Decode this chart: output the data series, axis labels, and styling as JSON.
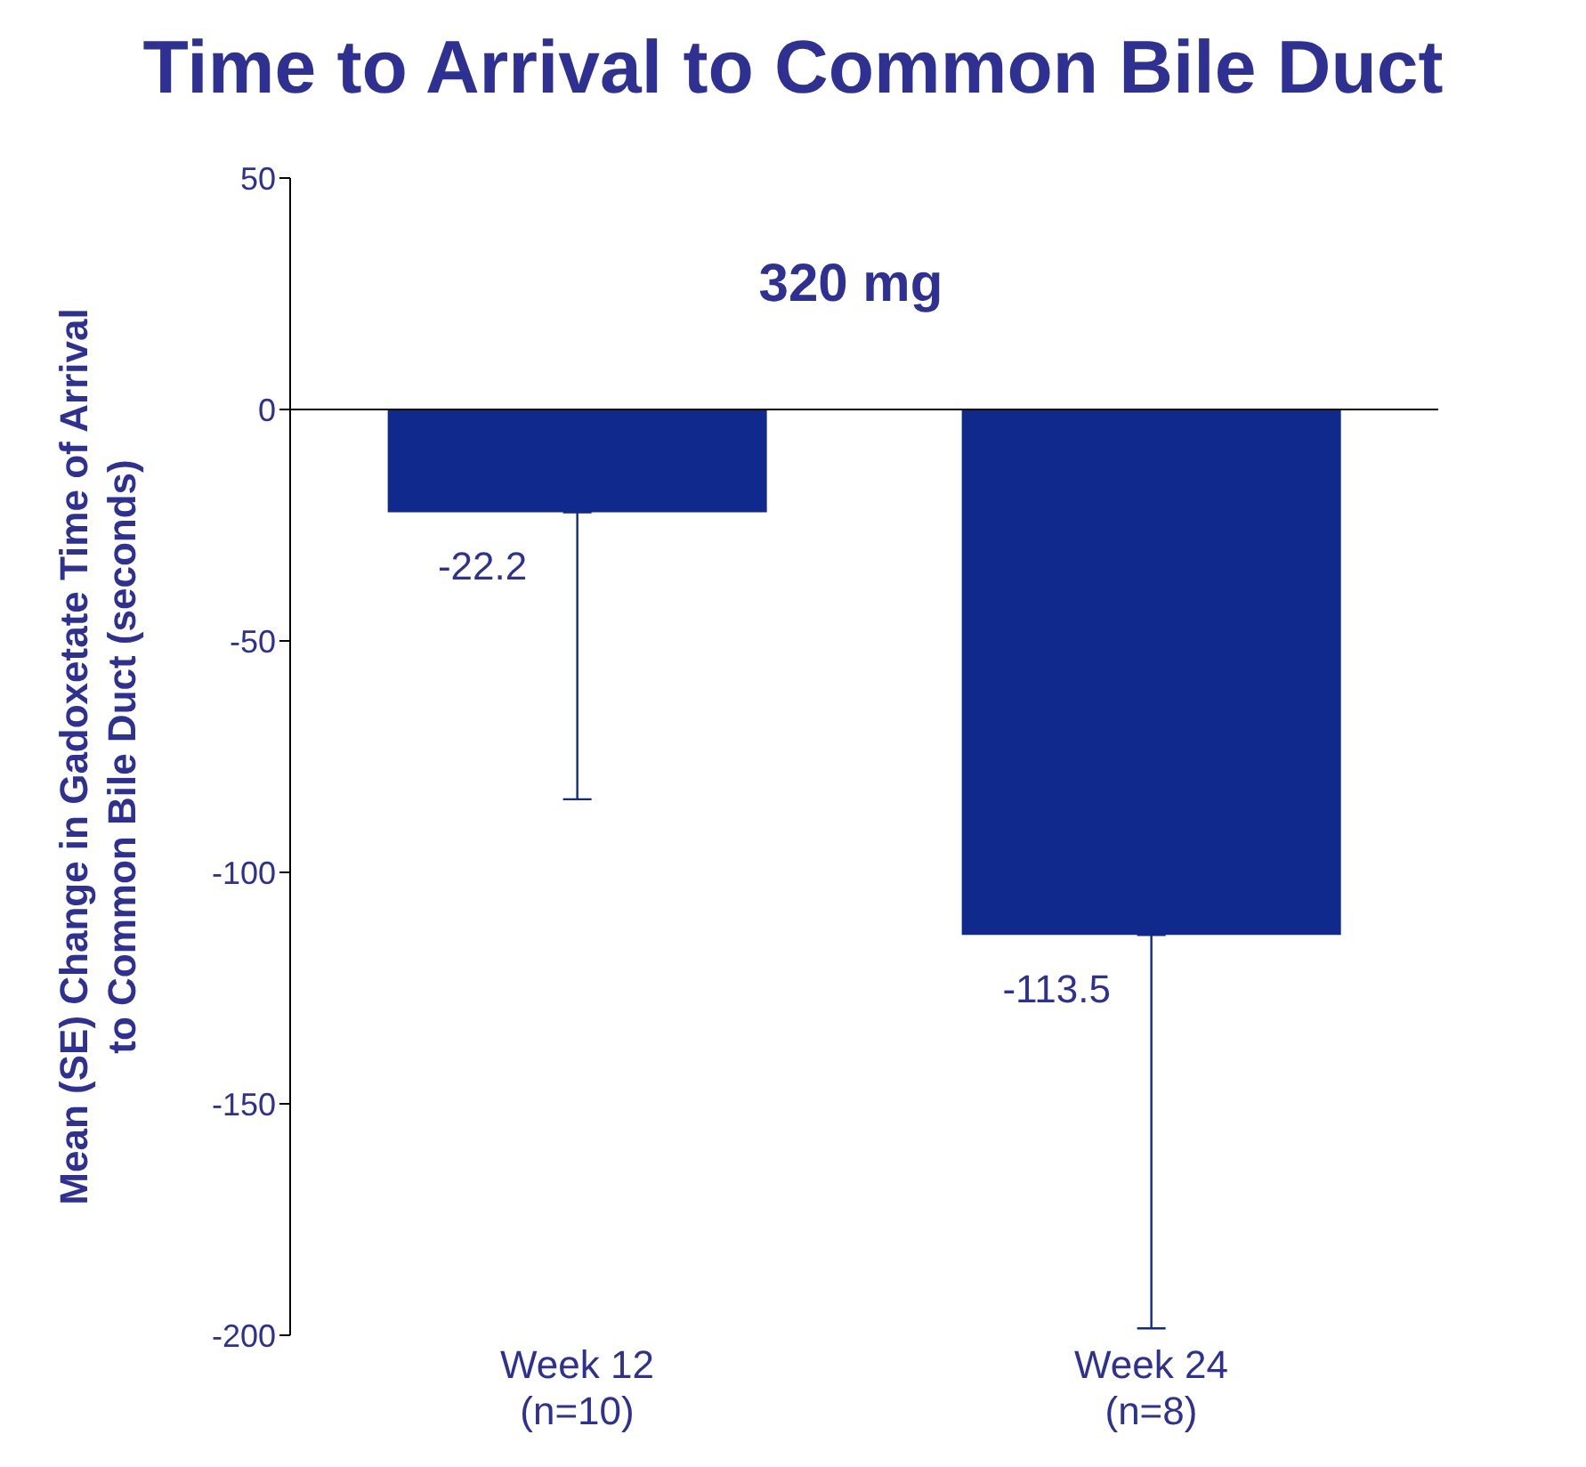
{
  "chart_data": {
    "type": "bar",
    "title": "Time to Arrival to Common Bile Duct",
    "ylabel": "Mean (SE) Change in Gadoxetate Time of Arrival\nto Common Bile Duct (seconds)",
    "annotations": [
      "320 mg"
    ],
    "categories": [
      "Week 12\n(n=10)",
      "Week 24\n(n=8)"
    ],
    "values": [
      -22.2,
      -113.5
    ],
    "color": "#0f2a8c",
    "errors": [
      [
        -84.2,
        -22.2
      ],
      [
        -198.5,
        -113.5
      ]
    ],
    "data_labels": true,
    "ylim": [
      -200,
      50
    ],
    "yticks": [
      -200,
      -150,
      -100,
      -50,
      0,
      50
    ]
  }
}
